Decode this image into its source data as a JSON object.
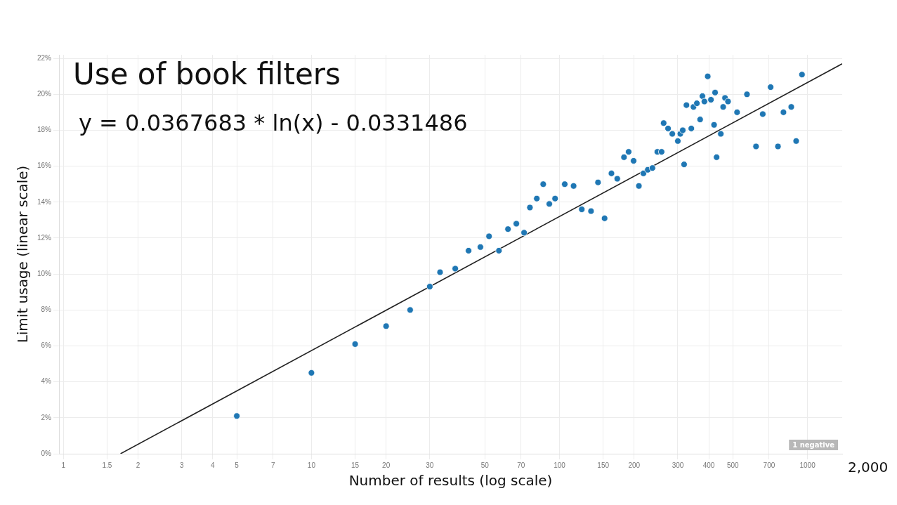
{
  "chart_data": {
    "type": "scatter",
    "title": "Use of book filters",
    "subtitle": "y = 0.0367683 * ln(x) - 0.0331486",
    "xlabel": "Number of results (log scale)",
    "ylabel": "Limit usage (linear scale)",
    "log": "x",
    "grid": true,
    "marker": "circle",
    "xlim": [
      0.96,
      1380
    ],
    "xticks": [
      1,
      1.5,
      2,
      3,
      4,
      5,
      7,
      10,
      15,
      20,
      30,
      50,
      70,
      100,
      150,
      200,
      300,
      400,
      500,
      700,
      1000
    ],
    "ylim": [
      0,
      22.2
    ],
    "yticks": [
      {
        "value": 0,
        "label": "0%"
      },
      {
        "value": 2,
        "label": "2%"
      },
      {
        "value": 4,
        "label": "4%"
      },
      {
        "value": 6,
        "label": "6%"
      },
      {
        "value": 8,
        "label": "8%"
      },
      {
        "value": 10,
        "label": "10%"
      },
      {
        "value": 12,
        "label": "12%"
      },
      {
        "value": 14,
        "label": "14%"
      },
      {
        "value": 16,
        "label": "16%"
      },
      {
        "value": 18,
        "label": "18%"
      },
      {
        "value": 20,
        "label": "20%"
      },
      {
        "value": 22,
        "label": "22%"
      }
    ],
    "annotations": [
      "2,000",
      "1 negative"
    ],
    "series": [
      {
        "type": "scatter",
        "color": "#1f77b4",
        "x": [
          5,
          10,
          15,
          20,
          25,
          30,
          33,
          38,
          43,
          48,
          52,
          57,
          62,
          67,
          72,
          76,
          81,
          86,
          91,
          96,
          105,
          114,
          123,
          134,
          143,
          152,
          162,
          171,
          182,
          190,
          199,
          209,
          218,
          227,
          237,
          248,
          258,
          263,
          274,
          285,
          300,
          307,
          314,
          318,
          325,
          340,
          347,
          358,
          369,
          377,
          384,
          396,
          408,
          420,
          424,
          430,
          447,
          457,
          465,
          478,
          520,
          570,
          620,
          660,
          710,
          760,
          800,
          860,
          900,
          950
        ],
        "values": [
          2.1,
          4.5,
          6.1,
          7.1,
          8.0,
          9.3,
          10.1,
          10.3,
          11.3,
          11.5,
          12.1,
          11.3,
          12.5,
          12.8,
          12.3,
          13.7,
          14.2,
          15.0,
          13.9,
          14.2,
          15.0,
          14.9,
          13.6,
          13.5,
          15.1,
          13.1,
          15.6,
          15.3,
          16.5,
          16.8,
          16.3,
          14.9,
          15.6,
          15.8,
          15.9,
          16.8,
          16.8,
          18.4,
          18.1,
          17.8,
          17.4,
          17.8,
          18.0,
          16.1,
          19.4,
          18.1,
          19.3,
          19.5,
          18.6,
          19.9,
          19.6,
          21.0,
          19.7,
          18.3,
          20.1,
          16.5,
          17.8,
          19.3,
          19.8,
          19.6,
          19.0,
          20.0,
          17.1,
          18.9,
          20.4,
          17.1,
          19.0,
          19.3,
          17.4,
          21.1
        ]
      },
      {
        "type": "line",
        "color": "#222222",
        "marker": "none",
        "x": [
          1.7,
          1380
        ],
        "values": [
          0,
          21.7
        ]
      }
    ]
  }
}
